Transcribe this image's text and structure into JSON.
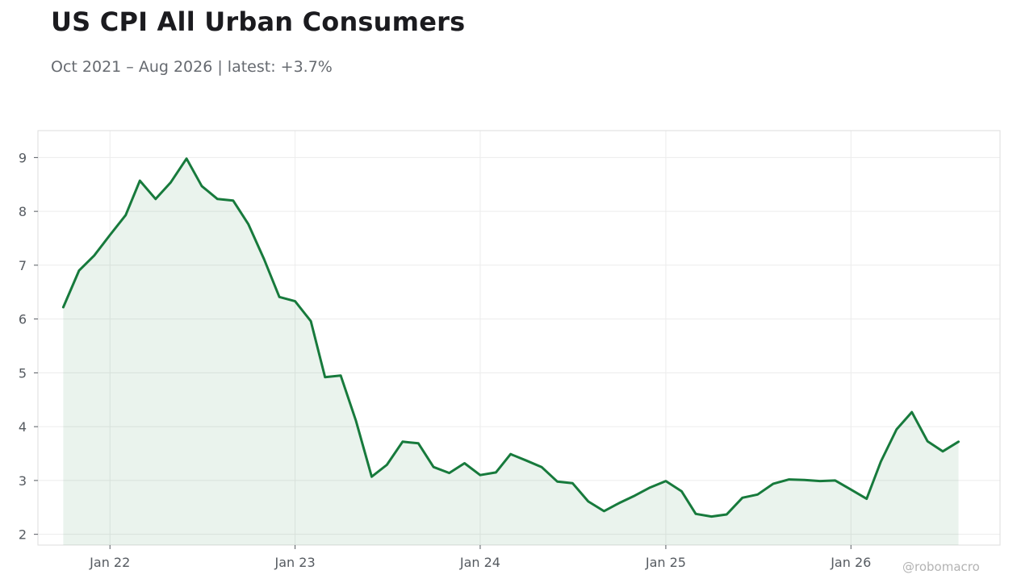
{
  "title": "US CPI All Urban Consumers",
  "subtitle": "Oct 2021 – Aug 2026 | latest: +3.7%",
  "watermark": "@robomacro",
  "colors": {
    "line": "#177a3c",
    "fill": "#177a3c",
    "grid": "#ececec",
    "frame": "#dddddd"
  },
  "chart_data": {
    "type": "area",
    "x_ticks": [
      {
        "date": "2022-01-01",
        "label": "Jan 22"
      },
      {
        "date": "2023-01-01",
        "label": "Jan 23"
      },
      {
        "date": "2024-01-01",
        "label": "Jan 24"
      },
      {
        "date": "2025-01-01",
        "label": "Jan 25"
      },
      {
        "date": "2026-01-01",
        "label": "Jan 26"
      }
    ],
    "y_ticks": [
      2,
      3,
      4,
      5,
      6,
      7,
      8,
      9
    ],
    "ylim": [
      1.8,
      9.5
    ],
    "xlim": [
      "2021-08-12",
      "2026-10-22"
    ],
    "grid": true,
    "series": [
      {
        "x": [
          "2021-10-01",
          "2021-11-01",
          "2021-12-01",
          "2022-01-01",
          "2022-02-01",
          "2022-03-01",
          "2022-04-01",
          "2022-05-01",
          "2022-06-01",
          "2022-07-01",
          "2022-08-01",
          "2022-09-01",
          "2022-10-01",
          "2022-11-01",
          "2022-12-01",
          "2023-01-01",
          "2023-02-01",
          "2023-03-01",
          "2023-04-01",
          "2023-05-01",
          "2023-06-01",
          "2023-07-01",
          "2023-08-01",
          "2023-09-01",
          "2023-10-01",
          "2023-11-01",
          "2023-12-01",
          "2024-01-01",
          "2024-02-01",
          "2024-03-01",
          "2024-04-01",
          "2024-05-01",
          "2024-06-01",
          "2024-07-01",
          "2024-08-01",
          "2024-09-01",
          "2024-10-01",
          "2024-11-01",
          "2024-12-01",
          "2025-01-01",
          "2025-02-01",
          "2025-03-01",
          "2025-04-01",
          "2025-05-01",
          "2025-06-01",
          "2025-07-01",
          "2025-08-01",
          "2025-09-01",
          "2025-10-01",
          "2025-11-01",
          "2025-12-01",
          "2026-01-01",
          "2026-02-01",
          "2026-03-01",
          "2026-04-01",
          "2026-05-01",
          "2026-06-01",
          "2026-07-01",
          "2026-08-01"
        ],
        "values": [
          6.22,
          6.9,
          7.18,
          7.56,
          7.93,
          8.57,
          8.23,
          8.54,
          8.98,
          8.47,
          8.23,
          8.2,
          7.76,
          7.11,
          6.41,
          6.33,
          5.96,
          4.92,
          4.95,
          4.11,
          3.07,
          3.29,
          3.72,
          3.69,
          3.25,
          3.14,
          3.32,
          3.1,
          3.15,
          3.49,
          3.37,
          3.25,
          2.98,
          2.95,
          2.61,
          2.43,
          2.58,
          2.72,
          2.87,
          2.99,
          2.8,
          2.38,
          2.33,
          2.37,
          2.68,
          2.74,
          2.94,
          3.02,
          3.01,
          2.99,
          3.0,
          2.83,
          2.66,
          3.35,
          3.95,
          4.27,
          3.73,
          3.54,
          3.72
        ]
      }
    ]
  }
}
